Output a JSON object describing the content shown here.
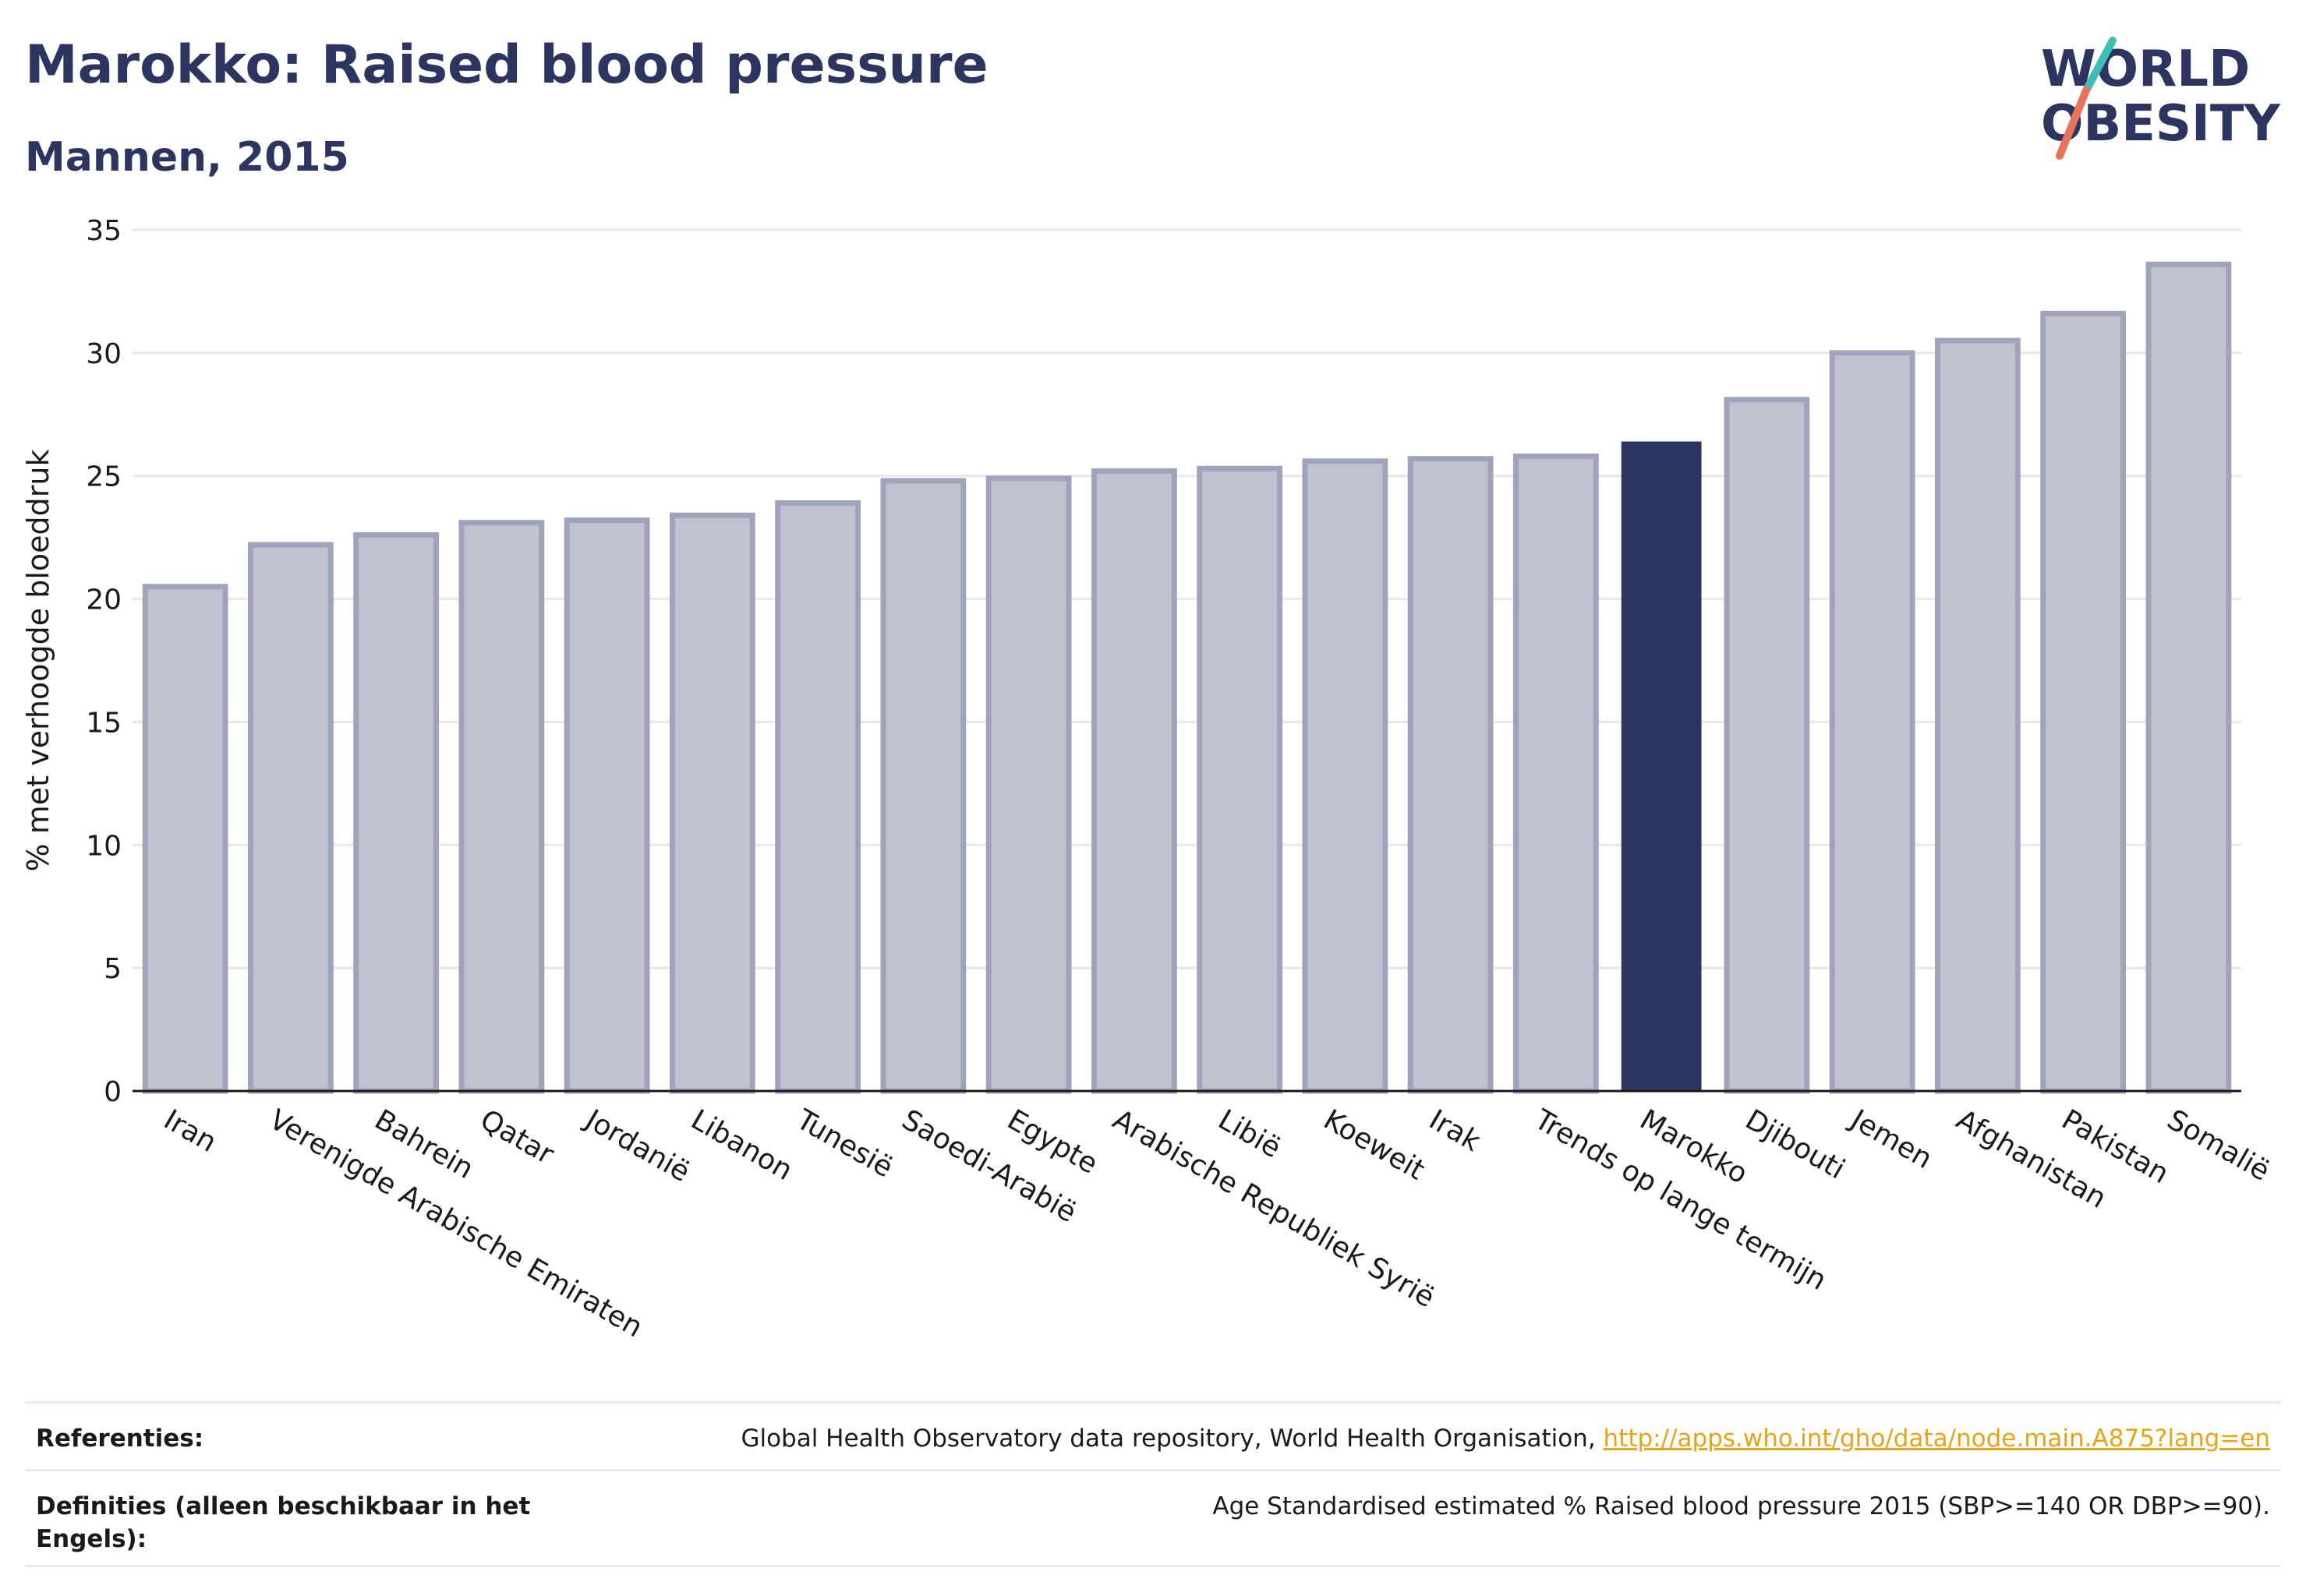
{
  "header": {
    "title": "Marokko: Raised blood pressure",
    "subtitle": "Mannen, 2015",
    "logo_line1": "WORLD",
    "logo_line2": "OBESITY"
  },
  "colors": {
    "highlight_bar": "#2c3560",
    "other_bar_fill": "#bfc2cf",
    "other_bar_stroke": "#9fa4bb",
    "title": "#2c3560",
    "logo_teal": "#3dbfb8",
    "logo_coral": "#e8735a",
    "link": "#e8a317"
  },
  "chart_data": {
    "type": "bar",
    "ylabel": "% met verhoogde bloeddruk",
    "ylim": [
      0,
      35
    ],
    "yticks": [
      0,
      5,
      10,
      15,
      20,
      25,
      30,
      35
    ],
    "grid": true,
    "highlight": "Marokko",
    "categories": [
      "Iran",
      "Verenigde Arabische Emiraten",
      "Bahrein",
      "Qatar",
      "Jordanië",
      "Libanon",
      "Tunesië",
      "Saoedi-Arabië",
      "Egypte",
      "Arabische Republiek Syrië",
      "Libië",
      "Koeweit",
      "Irak",
      "Trends op lange termijn",
      "Marokko",
      "Djibouti",
      "Jemen",
      "Afghanistan",
      "Pakistan",
      "Somalië"
    ],
    "values": [
      20.5,
      22.2,
      22.6,
      23.1,
      23.2,
      23.4,
      23.9,
      24.8,
      24.9,
      25.2,
      25.3,
      25.6,
      25.7,
      25.8,
      26.4,
      28.1,
      30.0,
      30.5,
      31.6,
      33.6
    ]
  },
  "footer": {
    "references_label": "Referenties:",
    "references_text": "Global Health Observatory data repository, World Health Organisation,",
    "references_link": "http://apps.who.int/gho/data/node.main.A875?lang=en",
    "definitions_label": "Definities (alleen beschikbaar in het Engels):",
    "definitions_text": "Age Standardised estimated % Raised blood pressure 2015 (SBP>=140 OR DBP>=90)."
  }
}
